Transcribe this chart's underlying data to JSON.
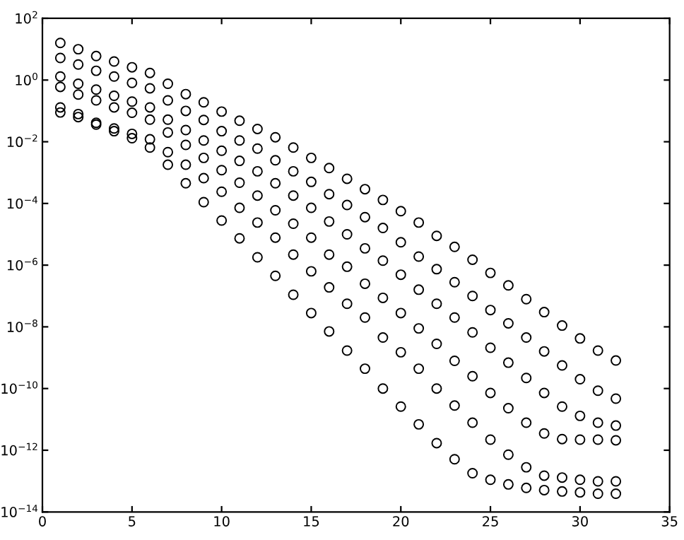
{
  "chart_data": {
    "type": "scatter",
    "xlim": [
      0,
      35
    ],
    "xticks": [
      0,
      5,
      10,
      15,
      20,
      25,
      30,
      35
    ],
    "ylim": [
      1e-14,
      100
    ],
    "log": "y",
    "yticks": [
      {
        "value": 1e-14,
        "label": "10$^{−14}$"
      },
      {
        "value": 1e-12,
        "label": "10$^{−12}$"
      },
      {
        "value": 1e-10,
        "label": "10$^{−10}$"
      },
      {
        "value": 1e-08,
        "label": "10$^{−8}$"
      },
      {
        "value": 1e-06,
        "label": "10$^{−6}$"
      },
      {
        "value": 0.0001,
        "label": "10$^{−4}$"
      },
      {
        "value": 0.01,
        "label": "10$^{−2}$"
      },
      {
        "value": 1,
        "label": "10$^{0}$"
      },
      {
        "value": 100,
        "label": "10$^{2}$"
      }
    ],
    "grid": false,
    "legend": false,
    "marker": "circle",
    "series": [
      {
        "color": "#000000",
        "x": [
          1,
          1,
          1,
          1,
          1,
          1,
          2,
          2,
          2,
          2,
          2,
          2,
          3,
          3,
          3,
          3,
          3,
          3,
          4,
          4,
          4,
          4,
          4,
          4,
          5,
          5,
          5,
          5,
          5,
          5,
          6,
          6,
          6,
          6,
          6,
          6,
          7,
          7,
          7,
          7,
          7,
          7,
          8,
          8,
          8,
          8,
          8,
          8,
          9,
          9,
          9,
          9,
          9,
          9,
          10,
          10,
          10,
          10,
          10,
          10,
          11,
          11,
          11,
          11,
          11,
          11,
          12,
          12,
          12,
          12,
          12,
          12,
          13,
          13,
          13,
          13,
          13,
          13,
          14,
          14,
          14,
          14,
          14,
          14,
          15,
          15,
          15,
          15,
          15,
          15,
          16,
          16,
          16,
          16,
          16,
          16,
          17,
          17,
          17,
          17,
          17,
          17,
          18,
          18,
          18,
          18,
          18,
          18,
          19,
          19,
          19,
          19,
          19,
          19,
          20,
          20,
          20,
          20,
          20,
          20,
          21,
          21,
          21,
          21,
          21,
          21,
          22,
          22,
          22,
          22,
          22,
          22,
          23,
          23,
          23,
          23,
          23,
          23,
          24,
          24,
          24,
          24,
          24,
          24,
          25,
          25,
          25,
          25,
          25,
          25,
          26,
          26,
          26,
          26,
          26,
          26,
          27,
          27,
          27,
          27,
          27,
          27,
          28,
          28,
          28,
          28,
          28,
          28,
          29,
          29,
          29,
          29,
          29,
          29,
          30,
          30,
          30,
          30,
          30,
          30,
          31,
          31,
          31,
          31,
          31,
          31,
          32,
          32,
          32,
          32,
          32,
          32
        ],
        "values": [
          16,
          5.2,
          1.3,
          0.6,
          0.13,
          0.089,
          10,
          3.2,
          0.76,
          0.34,
          0.079,
          0.063,
          6.0,
          2.0,
          0.49,
          0.22,
          0.041,
          0.036,
          4.0,
          1.3,
          0.31,
          0.13,
          0.027,
          0.022,
          2.6,
          0.81,
          0.2,
          0.087,
          0.018,
          0.013,
          1.7,
          0.54,
          0.13,
          0.052,
          0.012,
          0.0065,
          0.76,
          0.22,
          0.052,
          0.02,
          0.0046,
          0.0018,
          0.35,
          0.1,
          0.024,
          0.0079,
          0.0018,
          0.00045,
          0.19,
          0.051,
          0.011,
          0.003,
          0.00066,
          0.00011,
          0.095,
          0.022,
          0.0051,
          0.0012,
          0.00024,
          2.8e-05,
          0.048,
          0.011,
          0.0024,
          0.00047,
          7.2e-05,
          7.4e-06,
          0.026,
          0.006,
          0.0011,
          0.00018,
          2.4e-05,
          1.8e-06,
          0.014,
          0.0025,
          0.00045,
          6e-05,
          7.8e-06,
          4.5e-07,
          0.0065,
          0.0011,
          0.00018,
          2.2e-05,
          2.2e-06,
          1.1e-07,
          0.003,
          0.0005,
          7.2e-05,
          7.8e-06,
          6.3e-07,
          2.8e-08,
          0.0014,
          0.0002,
          2.6e-05,
          2.2e-06,
          1.9e-07,
          7.1e-09,
          0.00063,
          8.9e-05,
          1e-05,
          8.9e-07,
          5.6e-08,
          1.7e-09,
          0.00029,
          3.6e-05,
          3.5e-06,
          2.5e-07,
          2e-08,
          4.4e-10,
          0.00013,
          1.6e-05,
          1.4e-06,
          8.7e-08,
          4.5e-09,
          1e-10,
          5.6e-05,
          5.5e-06,
          4.9e-07,
          2.8e-08,
          1.5e-09,
          2.6e-11,
          2.4e-05,
          1.9e-06,
          1.6e-07,
          8.9e-09,
          4.4e-10,
          6.9e-12,
          8.9e-06,
          7.4e-07,
          5.6e-08,
          2.8e-09,
          1e-10,
          1.7e-12,
          3.9e-06,
          2.8e-07,
          2e-08,
          7.9e-10,
          2.8e-11,
          5.1e-13,
          1.5e-06,
          1e-07,
          6.6e-09,
          2.5e-10,
          7.8e-12,
          1.8e-13,
          5.6e-07,
          3.5e-08,
          2.1e-09,
          7.2e-11,
          2.2e-12,
          1.1e-13,
          2.2e-07,
          1.3e-08,
          6.9e-10,
          2.3e-11,
          7.2e-13,
          7.8e-14,
          7.9e-08,
          4.5e-09,
          2.2e-10,
          7.8e-12,
          2.8e-13,
          6e-14,
          3e-08,
          1.6e-09,
          7.2e-11,
          3.5e-12,
          1.5e-13,
          5.1e-14,
          1.1e-08,
          5.6e-10,
          2.6e-11,
          2.3e-12,
          1.3e-13,
          4.6e-14,
          4.2e-09,
          2e-10,
          1.3e-11,
          2.2e-12,
          1.1e-13,
          4.3e-14,
          1.7e-09,
          8.5e-11,
          7.8e-12,
          2.2e-12,
          9.8e-14,
          3.9e-14,
          8.1e-10,
          4.7e-11,
          6.3e-12,
          2.1e-12,
          9.8e-14,
          3.9e-14
        ]
      }
    ]
  }
}
